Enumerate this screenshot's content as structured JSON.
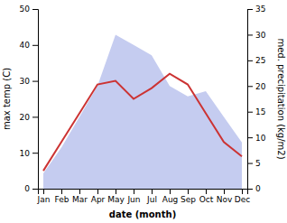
{
  "chart_data": {
    "type": "line",
    "categories": [
      "Jan",
      "Feb",
      "Mar",
      "Apr",
      "May",
      "Jun",
      "Jul",
      "Aug",
      "Sep",
      "Oct",
      "Nov",
      "Dec"
    ],
    "xlabel": "date (month)",
    "ylabel": "max temp (C)",
    "y2label": "med. precipitation (kg/m2)",
    "ylim": [
      0,
      50
    ],
    "yticks": [
      0,
      10,
      20,
      30,
      40,
      50
    ],
    "y2lim": [
      0,
      35
    ],
    "y2ticks": [
      0,
      5,
      10,
      15,
      20,
      25,
      30,
      35
    ],
    "series": [
      {
        "type": "area",
        "axis": "y2",
        "color": "#c5ccf0",
        "values": [
          3,
          8,
          14,
          20,
          30,
          28,
          26,
          20,
          18,
          19,
          14,
          9
        ]
      },
      {
        "type": "line",
        "color": "#cc3333",
        "values": [
          5,
          13,
          21,
          29,
          30,
          25,
          28,
          32,
          29,
          21,
          13,
          9
        ]
      }
    ]
  }
}
